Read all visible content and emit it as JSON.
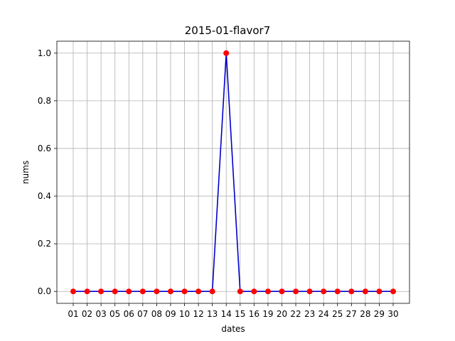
{
  "chart_data": {
    "type": "line",
    "title": "2015-01-flavor7",
    "xlabel": "dates",
    "ylabel": "nums",
    "categories": [
      "01",
      "02",
      "03",
      "05",
      "06",
      "07",
      "08",
      "09",
      "10",
      "12",
      "13",
      "14",
      "15",
      "16",
      "19",
      "20",
      "22",
      "23",
      "24",
      "25",
      "27",
      "28",
      "29",
      "30"
    ],
    "series": [
      {
        "values": [
          0,
          0,
          0,
          0,
          0,
          0,
          0,
          0,
          0,
          0,
          0,
          1,
          0,
          0,
          0,
          0,
          0,
          0,
          0,
          0,
          0,
          0,
          0,
          0
        ],
        "line_color": "#0000cc",
        "marker_color": "#ff0000"
      }
    ],
    "ylim": [
      -0.05,
      1.05
    ],
    "yticks": [
      0.0,
      0.2,
      0.4,
      0.6,
      0.8,
      1.0
    ],
    "ytick_labels": [
      "0.0",
      "0.2",
      "0.4",
      "0.6",
      "0.8",
      "1.0"
    ],
    "grid": true,
    "legend": "none"
  }
}
